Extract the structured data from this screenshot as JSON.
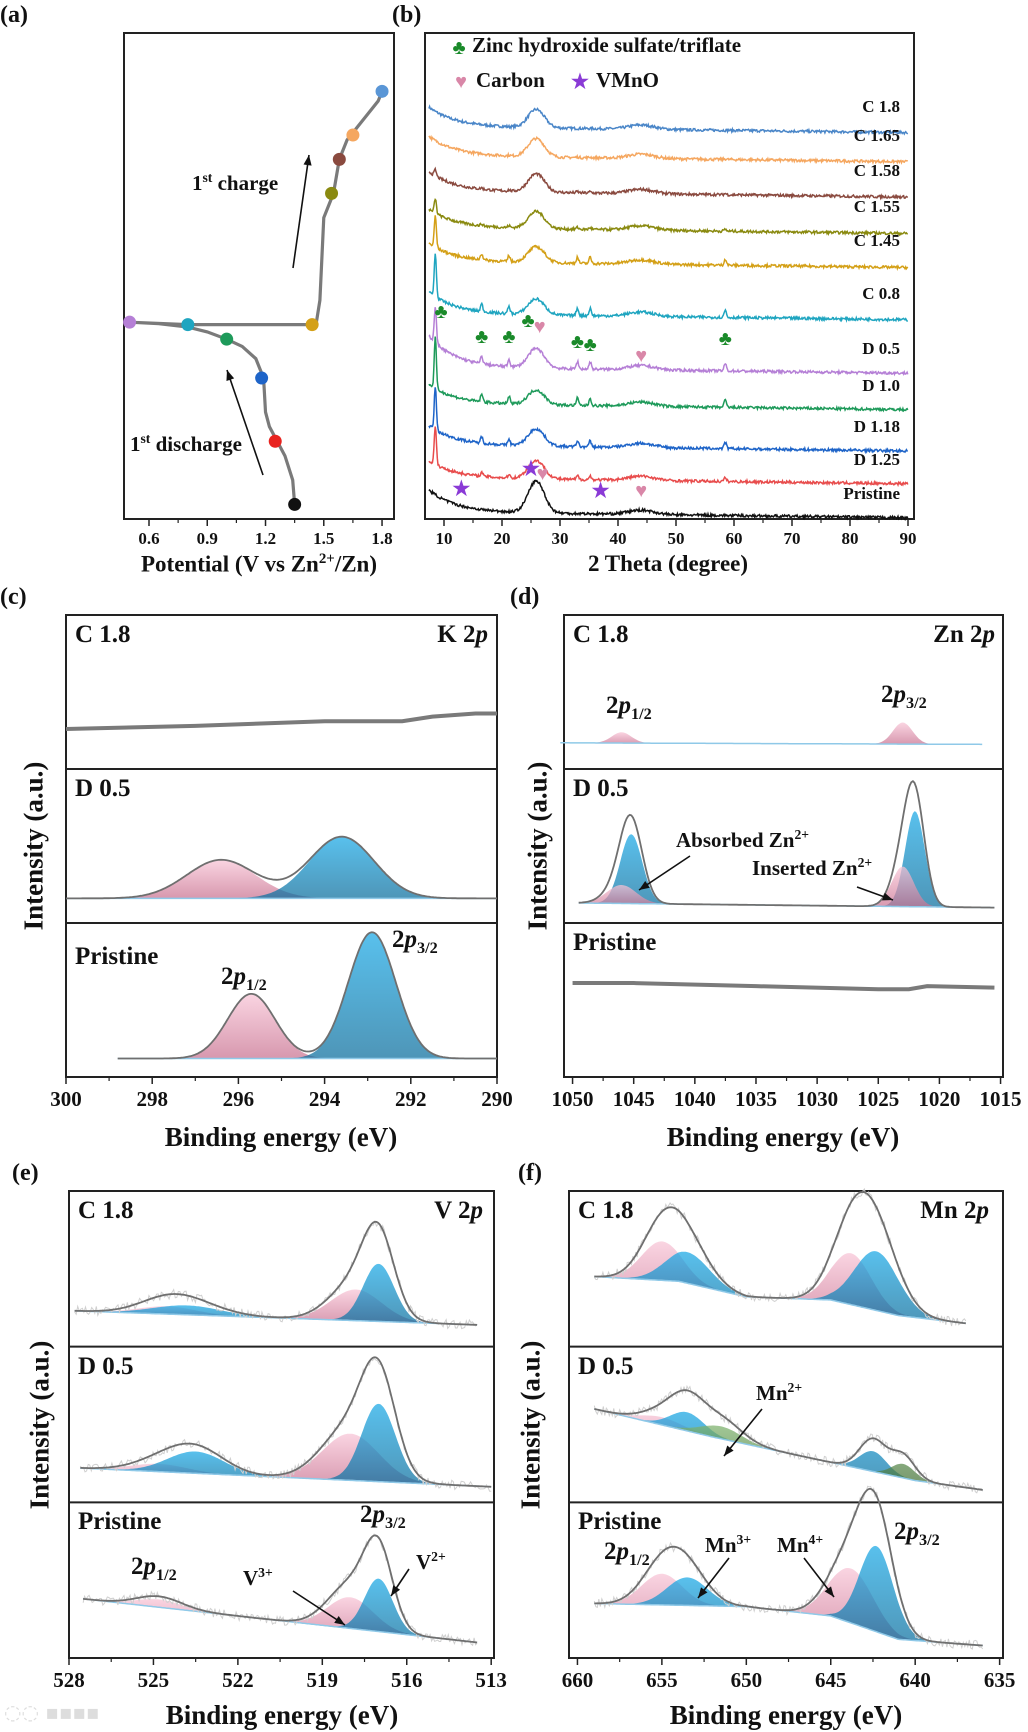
{
  "panels": {
    "a": "(a)",
    "b": "(b)",
    "c": "(c)",
    "d": "(d)",
    "e": "(e)",
    "f": "(f)"
  },
  "chart_data": [
    {
      "id": "a",
      "type": "line",
      "title": "",
      "xlabel": {
        "pre": "Potential (V vs Zn",
        "sup": "2+",
        "post": "/Zn)"
      },
      "xlim": [
        0.47,
        1.86
      ],
      "ylim": [
        0,
        1
      ],
      "xticks": [
        "0.6",
        "0.9",
        "1.2",
        "1.5",
        "1.8"
      ],
      "annotations": {
        "charge": {
          "pre": "1",
          "sup": "st",
          "post": " charge"
        },
        "discharge": {
          "pre": "1",
          "sup": "st",
          "post": " discharge"
        }
      },
      "curve": [
        [
          1.35,
          0.03
        ],
        [
          1.34,
          0.08
        ],
        [
          1.3,
          0.13
        ],
        [
          1.26,
          0.16
        ],
        [
          1.22,
          0.19
        ],
        [
          1.2,
          0.22
        ],
        [
          1.19,
          0.29
        ],
        [
          1.15,
          0.33
        ],
        [
          1.08,
          0.355
        ],
        [
          1.0,
          0.37
        ],
        [
          0.9,
          0.385
        ],
        [
          0.8,
          0.395
        ],
        [
          0.65,
          0.402
        ],
        [
          0.5,
          0.405
        ],
        [
          0.8,
          0.4
        ],
        [
          1.2,
          0.4
        ],
        [
          1.46,
          0.4
        ],
        [
          1.48,
          0.45
        ],
        [
          1.5,
          0.62
        ],
        [
          1.55,
          0.67
        ],
        [
          1.58,
          0.74
        ],
        [
          1.62,
          0.78
        ],
        [
          1.66,
          0.8
        ],
        [
          1.72,
          0.83
        ],
        [
          1.78,
          0.86
        ],
        [
          1.8,
          0.88
        ]
      ],
      "markers": [
        {
          "state": "Pristine",
          "potential": 1.35,
          "progress": 0.03,
          "color": "#111111"
        },
        {
          "state": "D 1.25",
          "potential": 1.25,
          "progress": 0.16,
          "color": "#e8231f"
        },
        {
          "state": "D 1.18",
          "potential": 1.18,
          "progress": 0.29,
          "color": "#1e64c8"
        },
        {
          "state": "D 1.0",
          "potential": 1.0,
          "progress": 0.37,
          "color": "#1e9a5a"
        },
        {
          "state": "D 0.5",
          "potential": 0.5,
          "progress": 0.405,
          "color": "#b57fd6"
        },
        {
          "state": "C 0.8",
          "potential": 0.8,
          "progress": 0.4,
          "color": "#1fa5c0"
        },
        {
          "state": "C 1.45",
          "potential": 1.44,
          "progress": 0.4,
          "color": "#d4a017"
        },
        {
          "state": "C 1.55",
          "potential": 1.54,
          "progress": 0.67,
          "color": "#8a8a10"
        },
        {
          "state": "C 1.58",
          "potential": 1.58,
          "progress": 0.74,
          "color": "#8a4a3f"
        },
        {
          "state": "C 1.65",
          "potential": 1.65,
          "progress": 0.79,
          "color": "#f5a760"
        },
        {
          "state": "C 1.8",
          "potential": 1.8,
          "progress": 0.88,
          "color": "#5a96d6"
        }
      ]
    },
    {
      "id": "b",
      "type": "line",
      "title": "",
      "xlabel": "2 Theta (degree)",
      "xlim": [
        6.7,
        91
      ],
      "ylim": [
        0,
        40
      ],
      "xticks": [
        "10",
        "20",
        "30",
        "40",
        "50",
        "60",
        "70",
        "80",
        "90"
      ],
      "legend": {
        "club": "Zinc hydroxide sulfate/triflate",
        "heart": "Carbon",
        "star": "VMnO",
        "club_color": "#1a8a2a",
        "heart_color": "#d987a8",
        "star_color": "#8a3ad6"
      },
      "series": [
        {
          "name": "C 1.8",
          "color": "#4a86c8",
          "offset": 32.3,
          "decay": 1.6,
          "hump": 1.5,
          "sharp": 0,
          "small": 0
        },
        {
          "name": "C 1.65",
          "color": "#f5a760",
          "offset": 29.9,
          "decay": 1.6,
          "hump": 1.5,
          "sharp": 0,
          "small": 0.05
        },
        {
          "name": "C 1.58",
          "color": "#8a4a3f",
          "offset": 27.0,
          "decay": 1.6,
          "hump": 1.5,
          "sharp": 0.5,
          "small": 0.1
        },
        {
          "name": "C 1.55",
          "color": "#8a8a10",
          "offset": 24.0,
          "decay": 1.5,
          "hump": 1.4,
          "sharp": 1.2,
          "small": 0.15
        },
        {
          "name": "C 1.45",
          "color": "#d4a017",
          "offset": 21.2,
          "decay": 1.5,
          "hump": 1.3,
          "sharp": 2.6,
          "small": 0.5
        },
        {
          "name": "C 0.8",
          "color": "#1fa5c0",
          "offset": 16.9,
          "decay": 1.8,
          "hump": 1.3,
          "sharp": 3.6,
          "small": 0.6
        },
        {
          "name": "D 0.5",
          "color": "#b57fd6",
          "offset": 12.5,
          "decay": 2.6,
          "hump": 1.6,
          "sharp": 3.0,
          "small": 0.6
        },
        {
          "name": "D 1.0",
          "color": "#1e9a5a",
          "offset": 9.5,
          "decay": 1.6,
          "hump": 1.2,
          "sharp": 4.2,
          "small": 0.6
        },
        {
          "name": "D 1.18",
          "color": "#1e64c8",
          "offset": 6.1,
          "decay": 1.6,
          "hump": 1.4,
          "sharp": 3.6,
          "small": 0.5
        },
        {
          "name": "D 1.25",
          "color": "#e84c4c",
          "offset": 3.4,
          "decay": 1.4,
          "hump": 1.5,
          "sharp": 3.2,
          "small": 0.3
        },
        {
          "name": "Pristine",
          "color": "#111111",
          "offset": 0.6,
          "decay": 1.8,
          "hump": 2.6,
          "sharp": 0,
          "small": 0
        }
      ],
      "club_marks": [
        9.5,
        16.5,
        21.2,
        24.5,
        33.0,
        35.2,
        58.5
      ],
      "heart_marks_d05": [
        26.5,
        44.0
      ],
      "star_marks_pristine": [
        13.0,
        25.0,
        37.0
      ],
      "heart_marks_pristine": [
        27.0,
        44.0
      ]
    },
    {
      "id": "c",
      "type": "area",
      "element": {
        "name": "K ",
        "italic": "p",
        "num": "2"
      },
      "xlabel": "Binding energy (eV)",
      "ylabel": "Intensity (a.u.)",
      "xlim": [
        300,
        290
      ],
      "xticks": [
        "300",
        "298",
        "296",
        "294",
        "292",
        "290"
      ],
      "subpanels": [
        {
          "label": "C 1.8",
          "raw": [
            [
              300,
              0.26
            ],
            [
              297,
              0.28
            ],
            [
              294,
              0.31
            ],
            [
              292.2,
              0.31
            ],
            [
              291.5,
              0.34
            ],
            [
              290.5,
              0.36
            ],
            [
              290,
              0.36
            ]
          ]
        },
        {
          "label": "D 0.5",
          "baseline": [
            [
              300,
              0.16
            ],
            [
              290,
              0.16
            ]
          ],
          "components": [
            [
              296.4,
              0.25,
              0.8,
              "pink"
            ],
            [
              293.6,
              0.4,
              0.75,
              "blue"
            ]
          ],
          "env": 1.0
        },
        {
          "label": "Pristine",
          "baseline": [
            [
              298.8,
              0.12
            ],
            [
              290,
              0.12
            ]
          ],
          "components": [
            [
              295.7,
              0.42,
              0.55,
              "pink"
            ],
            [
              292.9,
              0.82,
              0.55,
              "blue"
            ]
          ],
          "env": 1.0
        }
      ],
      "labels": {
        "p12": {
          "n": "2",
          "i": "p",
          "s": "1/2"
        },
        "p32": {
          "n": "2",
          "i": "p",
          "s": "3/2"
        }
      }
    },
    {
      "id": "d",
      "type": "area",
      "element": {
        "name": "Zn ",
        "italic": "p",
        "num": "2"
      },
      "xlabel": "Binding energy (eV)",
      "ylabel": "Intensity (a.u.)",
      "xlim": [
        1050.7,
        1014.8
      ],
      "xticks": [
        "1050",
        "1045",
        "1040",
        "1035",
        "1030",
        "1025",
        "1020",
        "1015"
      ],
      "subpanels": [
        {
          "label": "C 1.8",
          "baseline": [
            [
              1051,
              0.17
            ],
            [
              1016.5,
              0.16
            ]
          ],
          "components": [
            [
              1046,
              0.07,
              0.8,
              "pink"
            ],
            [
              1023,
              0.14,
              0.8,
              "pink"
            ]
          ],
          "env": 0
        },
        {
          "label": "D 0.5",
          "baseline": [
            [
              1049.5,
              0.13
            ],
            [
              1015.5,
              0.1
            ]
          ],
          "components": [
            [
              1045.2,
              0.45,
              0.9,
              "blue"
            ],
            [
              1046,
              0.12,
              1.2,
              "pink"
            ],
            [
              1022,
              0.62,
              0.8,
              "blue"
            ],
            [
              1023,
              0.26,
              0.9,
              "pink"
            ]
          ],
          "env": 1.05
        },
        {
          "label": "Pristine",
          "raw": [
            [
              1050,
              0.61
            ],
            [
              1045,
              0.61
            ],
            [
              1035,
              0.59
            ],
            [
              1025,
              0.57
            ],
            [
              1022.5,
              0.57
            ],
            [
              1021,
              0.59
            ],
            [
              1015.5,
              0.58
            ]
          ]
        }
      ],
      "labels": {
        "p12": {
          "n": "2",
          "i": "p",
          "s": "1/2"
        },
        "p32": {
          "n": "2",
          "i": "p",
          "s": "3/2"
        },
        "absorbed": {
          "t": "Absorbed Zn",
          "s": "2+"
        },
        "inserted": {
          "t": "Inserted Zn",
          "s": "2+"
        }
      }
    },
    {
      "id": "e",
      "type": "area",
      "element": {
        "name": "V ",
        "italic": "p",
        "num": "2"
      },
      "xlabel": "Binding energy (eV)",
      "ylabel": "Intensity (a.u.)",
      "xlim": [
        528,
        512.9
      ],
      "xticks": [
        "528",
        "525",
        "522",
        "519",
        "516",
        "513"
      ],
      "subpanels": [
        {
          "label": "C 1.8",
          "baseline": [
            [
              527.8,
              0.23
            ],
            [
              513.5,
              0.14
            ]
          ],
          "components": [
            [
              524.5,
              0.05,
              1.0,
              "pink"
            ],
            [
              523.8,
              0.06,
              1.2,
              "blue"
            ],
            [
              517.8,
              0.2,
              0.9,
              "pink"
            ],
            [
              517,
              0.37,
              0.55,
              "blue"
            ]
          ],
          "env": 1.25,
          "noise": true
        },
        {
          "label": "D 0.5",
          "baseline": [
            [
              527.6,
              0.22
            ],
            [
              513,
              0.1
            ]
          ],
          "components": [
            [
              524.8,
              0.05,
              1.0,
              "pink"
            ],
            [
              523.5,
              0.14,
              1.0,
              "blue"
            ],
            [
              518,
              0.3,
              1.0,
              "pink"
            ],
            [
              517,
              0.5,
              0.6,
              "blue"
            ]
          ],
          "env": 1.15,
          "noise": true
        },
        {
          "label": "Pristine",
          "baseline": [
            [
              527.5,
              0.38
            ],
            [
              513.5,
              0.1
            ]
          ],
          "components": [
            [
              524.8,
              0.05,
              0.8,
              "pink"
            ],
            [
              518,
              0.2,
              0.8,
              "pink"
            ],
            [
              517,
              0.34,
              0.5,
              "blue"
            ]
          ],
          "env": 1.4,
          "noise": true
        }
      ],
      "labels": {
        "p12": {
          "n": "2",
          "i": "p",
          "s": "1/2"
        },
        "p32": {
          "n": "2",
          "i": "p",
          "s": "3/2"
        },
        "v3": {
          "t": "V",
          "s": "3+"
        },
        "v2": {
          "t": "V",
          "s": "2+"
        }
      }
    },
    {
      "id": "f",
      "type": "area",
      "element": {
        "name": "Mn ",
        "italic": "p",
        "num": "2"
      },
      "xlabel": "Binding energy (eV)",
      "ylabel": "Intensity (a.u.)",
      "xlim": [
        660.5,
        634.8
      ],
      "xticks": [
        "660",
        "655",
        "650",
        "645",
        "640",
        "635"
      ],
      "subpanels": [
        {
          "label": "C 1.8",
          "baseline": [
            [
              659,
              0.45
            ],
            [
              654,
              0.42
            ],
            [
              650,
              0.32
            ],
            [
              645,
              0.3
            ],
            [
              641,
              0.2
            ],
            [
              637,
              0.15
            ]
          ],
          "components": [
            [
              655,
              0.25,
              1.2,
              "pink"
            ],
            [
              653.5,
              0.2,
              1.3,
              "blue"
            ],
            [
              643.8,
              0.33,
              1.2,
              "pink"
            ],
            [
              642.3,
              0.38,
              1.3,
              "blue"
            ]
          ],
          "env": 1.25,
          "noise": true
        },
        {
          "label": "D 0.5",
          "baseline": [
            [
              659,
              0.6
            ],
            [
              652,
              0.42
            ],
            [
              646,
              0.28
            ],
            [
              640,
              0.14
            ],
            [
              636,
              0.08
            ]
          ],
          "components": [
            [
              655,
              0.05,
              1.2,
              "pink"
            ],
            [
              653.5,
              0.12,
              1.0,
              "blue"
            ],
            [
              651.5,
              0.08,
              1.2,
              "green"
            ],
            [
              642.5,
              0.13,
              0.8,
              "blue"
            ],
            [
              640.7,
              0.09,
              0.7,
              "green"
            ]
          ],
          "env": 1.6,
          "noise": true
        },
        {
          "label": "Pristine",
          "baseline": [
            [
              659,
              0.35
            ],
            [
              650,
              0.33
            ],
            [
              645,
              0.27
            ],
            [
              641,
              0.12
            ],
            [
              636,
              0.08
            ]
          ],
          "components": [
            [
              655,
              0.2,
              1.2,
              "pink"
            ],
            [
              653.5,
              0.18,
              1.2,
              "blue"
            ],
            [
              643.8,
              0.35,
              1.3,
              "pink"
            ],
            [
              642.3,
              0.55,
              1.0,
              "blue"
            ]
          ],
          "env": 1.2,
          "noise": true
        }
      ],
      "labels": {
        "p12": {
          "n": "2",
          "i": "p",
          "s": "1/2"
        },
        "p32": {
          "n": "2",
          "i": "p",
          "s": "3/2"
        },
        "mn2": {
          "t": "Mn",
          "s": "2+"
        },
        "mn3": {
          "t": "Mn",
          "s": "3+"
        },
        "mn4": {
          "t": "Mn",
          "s": "4+"
        }
      }
    }
  ],
  "colors": {
    "pink": "#f2a9c2",
    "blue": "#18a8e6",
    "blue_dark": "#0a6d9c",
    "green": "#6aa85a",
    "envelope": "#6f6f6f"
  },
  "watermark": "大数跨境"
}
